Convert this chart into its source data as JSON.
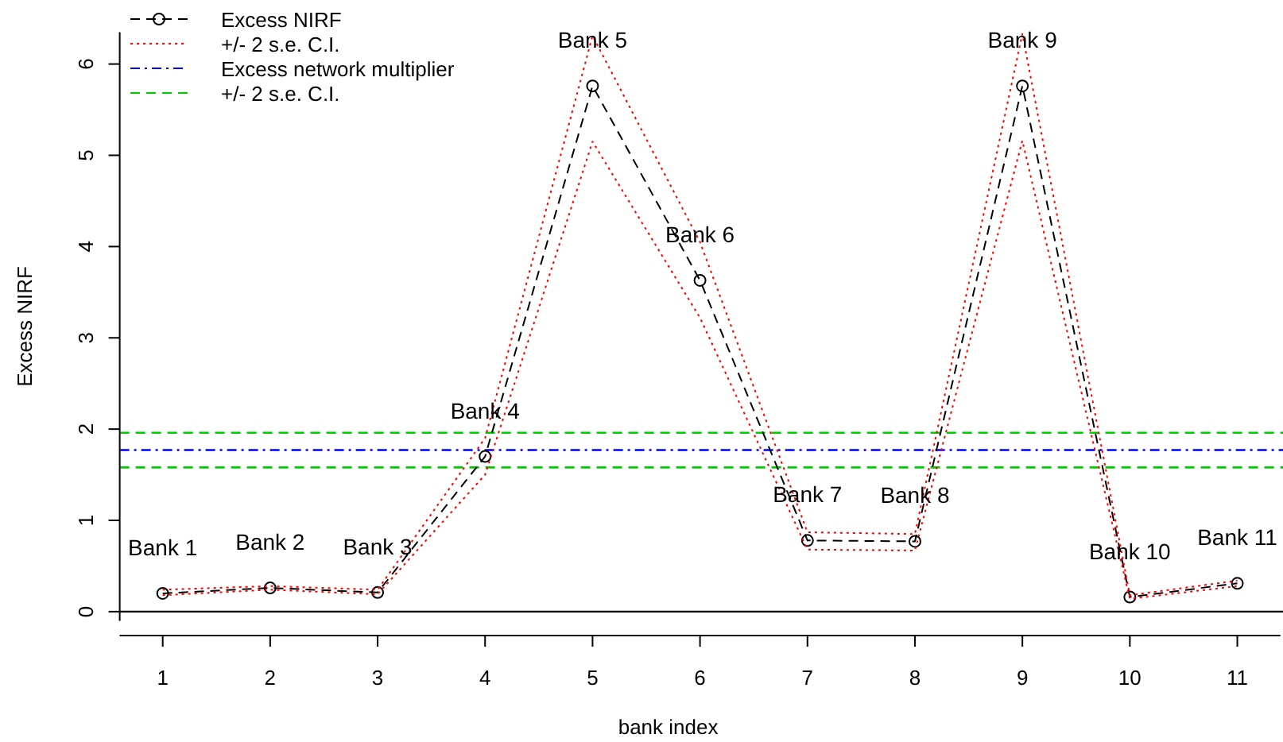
{
  "chart_data": {
    "type": "line",
    "xlabel": "bank index",
    "ylabel": "Excess NIRF",
    "x": [
      1,
      2,
      3,
      4,
      5,
      6,
      7,
      8,
      9,
      10,
      11
    ],
    "xlim": [
      0.6,
      11.4
    ],
    "xticks": [
      1,
      2,
      3,
      4,
      5,
      6,
      7,
      8,
      9,
      10,
      11
    ],
    "ylim": [
      -0.1,
      6.35
    ],
    "yticks": [
      0,
      1,
      2,
      3,
      4,
      5,
      6
    ],
    "series": [
      {
        "name": "Excess NIRF",
        "color": "#000000",
        "marker": "circle",
        "line_style": "dashed",
        "values": [
          0.2,
          0.26,
          0.21,
          1.7,
          5.76,
          3.63,
          0.78,
          0.77,
          5.76,
          0.16,
          0.31
        ]
      },
      {
        "name": "+/- 2 s.e. C.I.",
        "color": "#ff0000",
        "marker": "none",
        "line_style": "dotted",
        "values": [
          0.24,
          0.28,
          0.24,
          1.9,
          6.31,
          4.05,
          0.87,
          0.85,
          6.33,
          0.18,
          0.34
        ]
      },
      {
        "color": "#ff0000",
        "marker": "none",
        "line_style": "dotted",
        "values": [
          0.18,
          0.24,
          0.19,
          1.5,
          5.15,
          3.22,
          0.68,
          0.67,
          5.16,
          0.14,
          0.28
        ]
      }
    ],
    "ref_lines": [
      {
        "axis": "y",
        "value": 0,
        "color": "#000000",
        "line_style": "solid"
      },
      {
        "axis": "y",
        "value": 1.77,
        "label": "Excess network multiplier",
        "color": "#0000ff",
        "line_style": "dashdot"
      },
      {
        "axis": "y",
        "value": 1.96,
        "label": "+/- 2 s.e. C.I.",
        "color": "#00cd00",
        "line_style": "dashed"
      },
      {
        "axis": "y",
        "value": 1.58,
        "color": "#00cd00",
        "line_style": "dashed"
      }
    ],
    "annotations": [
      {
        "text": "Bank 1",
        "x": 1,
        "y": 0.2
      },
      {
        "text": "Bank 2",
        "x": 2,
        "y": 0.26
      },
      {
        "text": "Bank 3",
        "x": 3,
        "y": 0.21
      },
      {
        "text": "Bank 4",
        "x": 4,
        "y": 1.7
      },
      {
        "text": "Bank 5",
        "x": 5,
        "y": 5.76
      },
      {
        "text": "Bank 6",
        "x": 6,
        "y": 3.63
      },
      {
        "text": "Bank 7",
        "x": 7,
        "y": 0.78
      },
      {
        "text": "Bank 8",
        "x": 8,
        "y": 0.77
      },
      {
        "text": "Bank 9",
        "x": 9,
        "y": 5.76
      },
      {
        "text": "Bank 10",
        "x": 10,
        "y": 0.16
      },
      {
        "text": "Bank 11",
        "x": 11,
        "y": 0.31
      }
    ],
    "legend": "top left",
    "grid": false
  }
}
